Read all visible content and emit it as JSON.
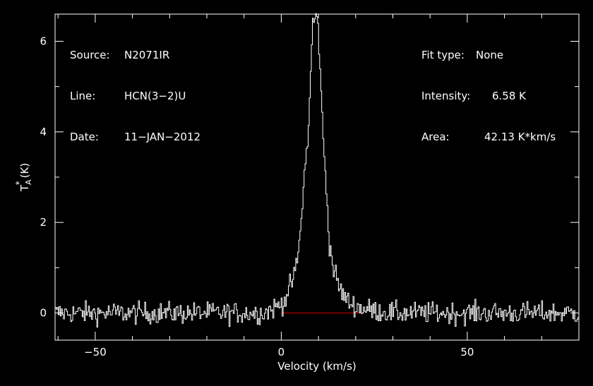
{
  "header_left": {
    "source_label": "Source:",
    "source_value": "N2071IR",
    "line_label": "Line:",
    "line_value": "HCN(3−2)U",
    "date_label": "Date:",
    "date_value": "11−JAN−2012"
  },
  "header_right": {
    "fit_label": "Fit type:",
    "fit_value": "None",
    "intensity_label": "Intensity:",
    "intensity_value": "6.58 K",
    "area_label": "Area:",
    "area_value": "42.13 K*km/s"
  },
  "chart_data": {
    "type": "line",
    "xlabel": "Velocity (km/s)",
    "ylabel_main": "T",
    "ylabel_sup": "*",
    "ylabel_sub": "A",
    "ylabel_unit": "(K)",
    "xlim": [
      -60.8,
      80
    ],
    "ylim": [
      -0.6,
      6.6
    ],
    "x_ticks": [
      -50,
      0,
      50
    ],
    "x_tick_labels": [
      "−50",
      "0",
      "50"
    ],
    "y_ticks": [
      0,
      2,
      4,
      6
    ],
    "y_tick_labels": [
      "0",
      "2",
      "4",
      "6"
    ],
    "baseline": {
      "x_start": 0,
      "x_end": 22,
      "y": 0,
      "color": "#d00000"
    },
    "series": [
      {
        "color": "#ffffff",
        "x": [
          -60,
          -50,
          -40,
          -30,
          -20,
          -10,
          -5,
          -2,
          0,
          1,
          2,
          3,
          4,
          5,
          6,
          6.5,
          7,
          7.5,
          8,
          8.5,
          9,
          9.5,
          10,
          10.5,
          11,
          11.5,
          12,
          12.5,
          13,
          14,
          15,
          16,
          17,
          18,
          20,
          22,
          25,
          30,
          40,
          50,
          60,
          70,
          80
        ],
        "y": [
          0,
          0,
          0,
          0,
          0,
          0,
          0,
          0.1,
          0.2,
          0.3,
          0.5,
          0.7,
          1.0,
          1.6,
          2.8,
          3.3,
          3.7,
          4.3,
          5.5,
          6.4,
          6.5,
          6.58,
          6.2,
          5.4,
          4.3,
          3.5,
          3.0,
          2.2,
          1.5,
          1.0,
          0.7,
          0.5,
          0.35,
          0.25,
          0.15,
          0.1,
          0.05,
          0,
          0,
          0,
          0,
          0,
          0
        ]
      }
    ],
    "noise_rms": 0.12
  }
}
